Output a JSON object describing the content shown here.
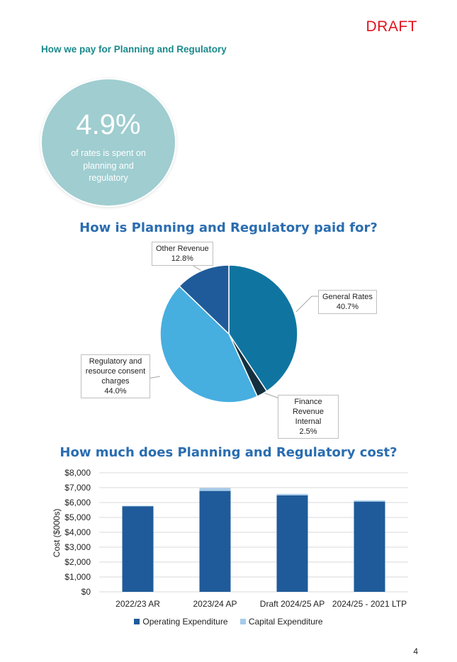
{
  "draft_label": "DRAFT",
  "section_heading": "How we pay for Planning and Regulatory",
  "stat": {
    "value": "4.9%",
    "caption": "of rates is spent on planning and regulatory"
  },
  "page_number": "4",
  "chart_data": [
    {
      "type": "pie",
      "title": "How is Planning and Regulatory paid for?",
      "slices": [
        {
          "name": "General Rates",
          "value": 40.7,
          "label": "40.7%",
          "color": "#0f75a0"
        },
        {
          "name": "Finance Revenue Internal",
          "value": 2.5,
          "label": "2.5%",
          "color": "#14303f"
        },
        {
          "name": "Regulatory and resource consent charges",
          "value": 44.0,
          "label": "44.0%",
          "color": "#47aee0"
        },
        {
          "name": "Other Revenue",
          "value": 12.8,
          "label": "12.8%",
          "color": "#1f5b9a"
        }
      ]
    },
    {
      "type": "bar",
      "stacked": true,
      "title": "How much does Planning and Regulatory cost?",
      "ylabel": "Cost ($000s)",
      "ylim": [
        0,
        8000
      ],
      "yticks": [
        "$0",
        "$1,000",
        "$2,000",
        "$3,000",
        "$4,000",
        "$5,000",
        "$6,000",
        "$7,000",
        "$8,000"
      ],
      "grid": true,
      "legend": "bottom",
      "categories": [
        "2022/23 AR",
        "2023/24 AP",
        "Draft 2024/25 AP",
        "2024/25 - 2021 LTP"
      ],
      "series": [
        {
          "name": "Operating Expenditure",
          "color": "#1f5b9a",
          "values": [
            5750,
            6780,
            6480,
            6060
          ]
        },
        {
          "name": "Capital Expenditure",
          "color": "#a7cbea",
          "values": [
            30,
            200,
            100,
            80
          ]
        }
      ]
    }
  ]
}
